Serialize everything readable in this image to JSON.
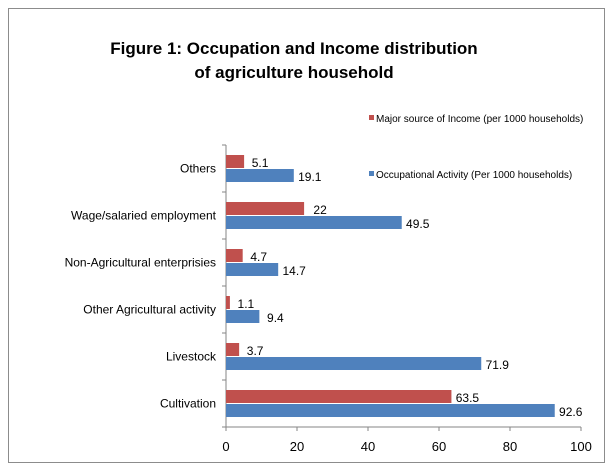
{
  "chart_data": {
    "type": "bar",
    "orientation": "horizontal",
    "title": [
      "Figure 1: Occupation and Income distribution",
      "of  agriculture household"
    ],
    "categories": [
      "Cultivation",
      "Livestock",
      "Other Agricultural activity",
      "Non-Agricultural enterprisies",
      "Wage/salaried employment",
      "Others"
    ],
    "series": [
      {
        "name": "Major source of Income (per 1000 households)",
        "color": "#c0504d",
        "values": [
          63.5,
          3.7,
          1.1,
          4.7,
          22,
          5.1
        ]
      },
      {
        "name": "Occupational Activity (Per 1000 households)",
        "color": "#4f81bd",
        "values": [
          92.6,
          71.9,
          9.4,
          14.7,
          49.5,
          19.1
        ]
      }
    ],
    "xlim": [
      0,
      100
    ],
    "xticks": [
      0,
      20,
      40,
      60,
      80,
      100
    ],
    "grid": false,
    "data_labels": true,
    "legend_position": "right"
  }
}
